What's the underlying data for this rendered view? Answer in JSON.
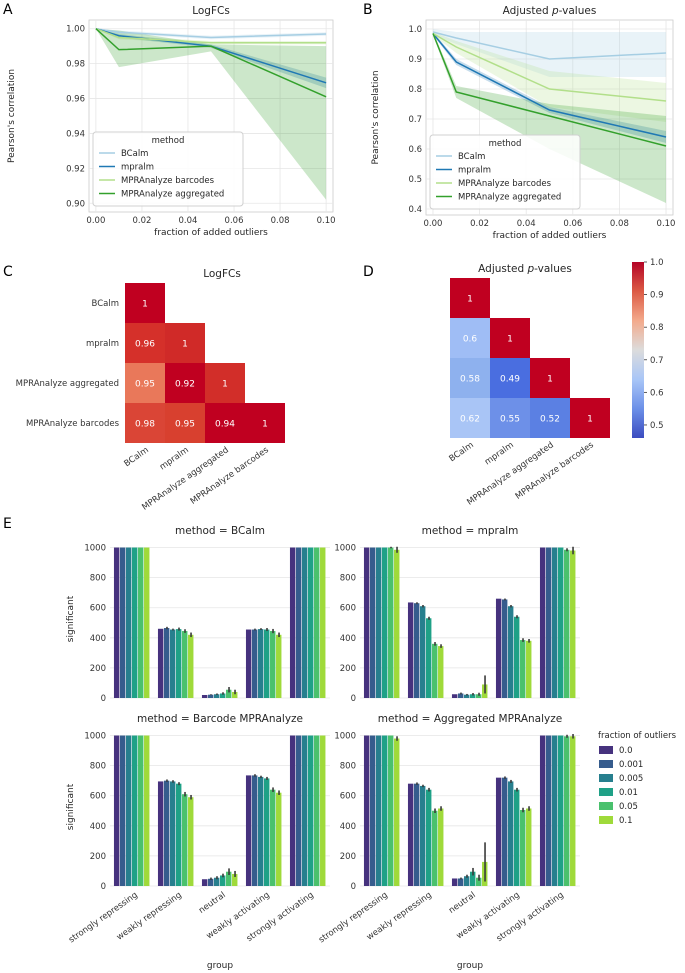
{
  "panel_labels": [
    "A",
    "B",
    "C",
    "D",
    "E"
  ],
  "chart_data": [
    {
      "id": "A",
      "type": "line",
      "title": "LogFCs",
      "xlabel": "fraction of added outliers",
      "ylabel": "Pearson's correlation",
      "x": [
        0.0,
        0.01,
        0.05,
        0.1
      ],
      "xlim": [
        -0.003,
        0.103
      ],
      "ylim": [
        0.895,
        1.005
      ],
      "xticks": [
        0.0,
        0.02,
        0.04,
        0.06,
        0.08,
        0.1
      ],
      "xtick_labels": [
        "0.00",
        "0.02",
        "0.04",
        "0.06",
        "0.08",
        "0.10"
      ],
      "yticks": [
        0.9,
        0.92,
        0.94,
        0.96,
        0.98,
        1.0
      ],
      "ytick_labels": [
        "0.90",
        "0.92",
        "0.94",
        "0.96",
        "0.98",
        "1.00"
      ],
      "legend": {
        "title": "method",
        "position": "bottom-left"
      },
      "series": [
        {
          "name": "BCalm",
          "color": "#a6cee3",
          "values": [
            1.0,
            0.998,
            0.995,
            0.997
          ],
          "lower": [
            1.0,
            0.997,
            0.994,
            0.996
          ],
          "upper": [
            1.0,
            0.999,
            0.996,
            0.998
          ]
        },
        {
          "name": "mpralm",
          "color": "#1f78b4",
          "values": [
            1.0,
            0.996,
            0.99,
            0.969
          ],
          "lower": [
            1.0,
            0.995,
            0.989,
            0.966
          ],
          "upper": [
            1.0,
            0.997,
            0.991,
            0.972
          ]
        },
        {
          "name": "MPRAnalyze barcodes",
          "color": "#b2df8a",
          "values": [
            1.0,
            0.995,
            0.992,
            0.992
          ],
          "lower": [
            1.0,
            0.994,
            0.991,
            0.991
          ],
          "upper": [
            1.0,
            0.996,
            0.993,
            0.993
          ]
        },
        {
          "name": "MPRAnalyze aggregated",
          "color": "#33a02c",
          "values": [
            1.0,
            0.988,
            0.99,
            0.961
          ],
          "lower": [
            1.0,
            0.978,
            0.987,
            0.902
          ],
          "upper": [
            1.0,
            0.999,
            0.991,
            0.99
          ]
        }
      ]
    },
    {
      "id": "B",
      "type": "line",
      "title": "Adjusted p-values",
      "title_main": "Adjusted ",
      "title_italic": "p",
      "title_end": "-values",
      "xlabel": "fraction of added outliers",
      "ylabel": "Pearson's correlation",
      "x": [
        0.0,
        0.01,
        0.05,
        0.1
      ],
      "xlim": [
        -0.003,
        0.103
      ],
      "ylim": [
        0.38,
        1.03
      ],
      "xticks": [
        0.0,
        0.02,
        0.04,
        0.06,
        0.08,
        0.1
      ],
      "xtick_labels": [
        "0.00",
        "0.02",
        "0.04",
        "0.06",
        "0.08",
        "0.10"
      ],
      "yticks": [
        0.4,
        0.5,
        0.6,
        0.7,
        0.8,
        0.9,
        1.0
      ],
      "ytick_labels": [
        "0.4",
        "0.5",
        "0.6",
        "0.7",
        "0.8",
        "0.9",
        "1.0"
      ],
      "legend": {
        "title": "method",
        "position": "bottom-left"
      },
      "series": [
        {
          "name": "BCalm",
          "color": "#a6cee3",
          "values": [
            0.99,
            0.97,
            0.9,
            0.92
          ],
          "lower": [
            0.98,
            0.95,
            0.84,
            0.84
          ],
          "upper": [
            1.0,
            0.99,
            0.99,
            0.99
          ]
        },
        {
          "name": "mpralm",
          "color": "#1f78b4",
          "values": [
            0.985,
            0.89,
            0.73,
            0.64
          ],
          "lower": [
            0.98,
            0.88,
            0.72,
            0.62
          ],
          "upper": [
            0.99,
            0.9,
            0.74,
            0.66
          ]
        },
        {
          "name": "MPRAnalyze barcodes",
          "color": "#b2df8a",
          "values": [
            0.985,
            0.94,
            0.8,
            0.76
          ],
          "lower": [
            0.98,
            0.92,
            0.74,
            0.69
          ],
          "upper": [
            0.99,
            0.96,
            0.86,
            0.82
          ]
        },
        {
          "name": "MPRAnalyze aggregated",
          "color": "#33a02c",
          "values": [
            0.985,
            0.79,
            0.71,
            0.61
          ],
          "lower": [
            0.98,
            0.77,
            0.6,
            0.42
          ],
          "upper": [
            0.99,
            0.81,
            0.75,
            0.71
          ]
        }
      ]
    },
    {
      "id": "C",
      "type": "heatmap",
      "title": "LogFCs",
      "labels": [
        "BCalm",
        "mpralm",
        "MPRAnalyze aggregated",
        "MPRAnalyze barcodes"
      ],
      "cells": [
        {
          "row": 0,
          "col": 0,
          "value": 1.0,
          "label": "1"
        },
        {
          "row": 1,
          "col": 0,
          "value": 0.96,
          "label": "0.96"
        },
        {
          "row": 1,
          "col": 1,
          "value": 1.0,
          "label": "1"
        },
        {
          "row": 2,
          "col": 0,
          "value": 0.95,
          "label": "0.95"
        },
        {
          "row": 2,
          "col": 1,
          "value": 0.92,
          "label": "0.92"
        },
        {
          "row": 2,
          "col": 2,
          "value": 1.0,
          "label": "1"
        },
        {
          "row": 3,
          "col": 0,
          "value": 0.98,
          "label": "0.98"
        },
        {
          "row": 3,
          "col": 1,
          "value": 0.95,
          "label": "0.95"
        },
        {
          "row": 3,
          "col": 2,
          "value": 0.94,
          "label": "0.94"
        },
        {
          "row": 3,
          "col": 3,
          "value": 1.0,
          "label": "1"
        }
      ],
      "colors": [
        "#c00020",
        "#d5302a",
        "#d02a28",
        "#e9785a",
        "#c00020",
        "#d22e29",
        "#da4536",
        "#d8402f",
        "#c00020",
        "#c00020"
      ]
    },
    {
      "id": "D",
      "type": "heatmap",
      "title": "Adjusted p-values",
      "title_main": "Adjusted ",
      "title_italic": "p",
      "title_end": "-values",
      "labels": [
        "BCalm",
        "mpralm",
        "MPRAnalyze aggregated",
        "MPRAnalyze barcodes"
      ],
      "cells": [
        {
          "row": 0,
          "col": 0,
          "value": 1.0,
          "label": "1"
        },
        {
          "row": 1,
          "col": 0,
          "value": 0.6,
          "label": "0.6"
        },
        {
          "row": 1,
          "col": 1,
          "value": 1.0,
          "label": "1"
        },
        {
          "row": 2,
          "col": 0,
          "value": 0.58,
          "label": "0.58"
        },
        {
          "row": 2,
          "col": 1,
          "value": 0.49,
          "label": "0.49"
        },
        {
          "row": 2,
          "col": 2,
          "value": 1.0,
          "label": "1"
        },
        {
          "row": 3,
          "col": 0,
          "value": 0.62,
          "label": "0.62"
        },
        {
          "row": 3,
          "col": 1,
          "value": 0.55,
          "label": "0.55"
        },
        {
          "row": 3,
          "col": 2,
          "value": 0.52,
          "label": "0.52"
        },
        {
          "row": 3,
          "col": 3,
          "value": 1.0,
          "label": "1"
        }
      ],
      "colors": [
        "#c00020",
        "#9fbdf5",
        "#c00020",
        "#8eb1ee",
        "#4a6ee0",
        "#c00020",
        "#a9c5f6",
        "#6d90e8",
        "#5b80e3",
        "#c00020"
      ],
      "colorbar": {
        "range": [
          0.46,
          1.0
        ],
        "ticks": [
          0.5,
          0.6,
          0.7,
          0.8,
          0.9,
          1.0
        ],
        "tick_labels": [
          "0.5",
          "0.6",
          "0.7",
          "0.8",
          "0.9",
          "1.0"
        ],
        "stops": [
          "#3b4cc0",
          "#6c90e8",
          "#a9c6f7",
          "#dcdcdc",
          "#f3aa8c",
          "#dc5b45",
          "#b40426"
        ]
      }
    },
    {
      "id": "E",
      "type": "bar",
      "xlabel": "group",
      "ylabel": "significant",
      "categories": [
        "strongly repressing",
        "weakly repressing",
        "neutral",
        "weakly activating",
        "strongly activating"
      ],
      "ylim": [
        0,
        1050
      ],
      "yticks": [
        0,
        200,
        400,
        600,
        800,
        1000
      ],
      "ytick_labels": [
        "0",
        "200",
        "400",
        "600",
        "800",
        "1000"
      ],
      "legend": {
        "title": "fraction of outliers",
        "position": "right",
        "entries": [
          "0.0",
          "0.001",
          "0.005",
          "0.01",
          "0.05",
          "0.1"
        ],
        "colors": [
          "#46327e",
          "#365c8d",
          "#277f8e",
          "#1fa187",
          "#4ac16d",
          "#9fda3a"
        ]
      },
      "facets": [
        {
          "title": "method = BCalm",
          "values": [
            [
              1000,
              1000,
              1000,
              1000,
              1000,
              1000
            ],
            [
              460,
              465,
              455,
              458,
              445,
              420
            ],
            [
              20,
              22,
              25,
              30,
              55,
              40
            ],
            [
              455,
              455,
              458,
              455,
              445,
              420
            ],
            [
              1000,
              1000,
              1000,
              1000,
              1000,
              1000
            ]
          ],
          "errors": [
            [
              0,
              0,
              0,
              0,
              0,
              0
            ],
            [
              0,
              8,
              6,
              10,
              12,
              15
            ],
            [
              0,
              3,
              5,
              8,
              18,
              15
            ],
            [
              0,
              6,
              6,
              10,
              14,
              15
            ],
            [
              0,
              0,
              0,
              0,
              0,
              0
            ]
          ]
        },
        {
          "title": "method = mpralm",
          "values": [
            [
              1000,
              1000,
              1000,
              1000,
              1000,
              985
            ],
            [
              635,
              630,
              610,
              530,
              360,
              345
            ],
            [
              25,
              30,
              22,
              25,
              25,
              90
            ],
            [
              660,
              655,
              610,
              540,
              385,
              380
            ],
            [
              1000,
              1000,
              1000,
              1000,
              985,
              980
            ]
          ],
          "errors": [
            [
              0,
              0,
              0,
              0,
              5,
              20
            ],
            [
              0,
              6,
              8,
              10,
              12,
              12
            ],
            [
              0,
              6,
              5,
              8,
              10,
              60
            ],
            [
              0,
              6,
              8,
              10,
              12,
              12
            ],
            [
              0,
              0,
              0,
              0,
              10,
              25
            ]
          ]
        },
        {
          "title": "method = Barcode MPRAnalyze",
          "values": [
            [
              1000,
              1000,
              1000,
              1000,
              1000,
              1000
            ],
            [
              695,
              700,
              695,
              680,
              610,
              590
            ],
            [
              45,
              48,
              55,
              70,
              95,
              80
            ],
            [
              735,
              735,
              725,
              715,
              640,
              620
            ],
            [
              1000,
              1000,
              1000,
              1000,
              1000,
              1000
            ]
          ],
          "errors": [
            [
              0,
              0,
              0,
              0,
              0,
              0
            ],
            [
              0,
              8,
              8,
              10,
              15,
              15
            ],
            [
              0,
              8,
              10,
              12,
              22,
              20
            ],
            [
              0,
              8,
              8,
              10,
              15,
              15
            ],
            [
              0,
              0,
              0,
              0,
              0,
              0
            ]
          ]
        },
        {
          "title": "method = Aggregated MPRAnalyze",
          "values": [
            [
              1000,
              1000,
              1000,
              1000,
              1000,
              980
            ],
            [
              680,
              680,
              665,
              640,
              500,
              515
            ],
            [
              50,
              50,
              65,
              95,
              55,
              160
            ],
            [
              720,
              720,
              695,
              640,
              505,
              515
            ],
            [
              1000,
              1000,
              1000,
              1000,
              995,
              995
            ]
          ],
          "errors": [
            [
              0,
              0,
              0,
              0,
              0,
              15
            ],
            [
              0,
              8,
              8,
              12,
              15,
              15
            ],
            [
              0,
              6,
              10,
              25,
              20,
              130
            ],
            [
              0,
              8,
              10,
              12,
              15,
              15
            ],
            [
              0,
              0,
              0,
              0,
              10,
              15
            ]
          ]
        }
      ]
    }
  ]
}
